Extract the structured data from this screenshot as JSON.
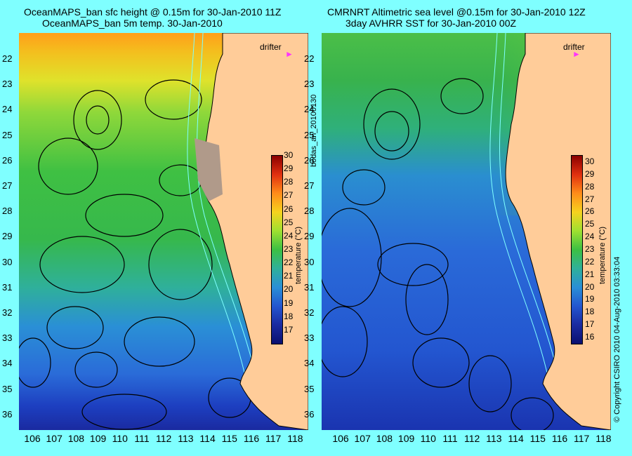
{
  "left": {
    "title_line1": "OceanMAPS_ban sfc height @ 0.15m for 30-Jan-2010 11Z",
    "title_line2": "OceanMAPS_ban 5m temp. 30-Jan-2010",
    "drifter_label": "drifter"
  },
  "right": {
    "title_line1": "CMRNRT Altimetric sea level  @0.15m  for 30-Jan-2010 12Z",
    "title_line2": "3day AVHRR SST for 30-Jan-2010 00Z",
    "drifter_label": "drifter"
  },
  "center_vertical_text": "bodas_an_20100130",
  "right_vertical_text": "© Copyright CSIRO 2010   04-Aug-2010 03:33:04",
  "latitudes": [
    "22",
    "23",
    "24",
    "25",
    "26",
    "27",
    "28",
    "29",
    "30",
    "31",
    "32",
    "33",
    "34",
    "35",
    "36"
  ],
  "longitudes": [
    "106",
    "107",
    "108",
    "109",
    "110",
    "111",
    "112",
    "113",
    "114",
    "115",
    "116",
    "117",
    "118"
  ],
  "colorbar": {
    "label": "temperature (°C)",
    "left_ticks": [
      "30",
      "29",
      "28",
      "27",
      "26",
      "25",
      "24",
      "23",
      "22",
      "21",
      "20",
      "19",
      "18",
      "17"
    ],
    "right_ticks": [
      "30",
      "29",
      "28",
      "27",
      "26",
      "25",
      "24",
      "23",
      "22",
      "21",
      "20",
      "19",
      "18",
      "17",
      "16"
    ],
    "left_min": 16,
    "left_max": 30,
    "right_min": 15.5,
    "right_max": 30.5
  },
  "colors": {
    "background": "#7fffff",
    "land": "#ffcc99",
    "contour": "#000000",
    "isobath": "#7fffff",
    "drifter": "#ff33ff"
  }
}
